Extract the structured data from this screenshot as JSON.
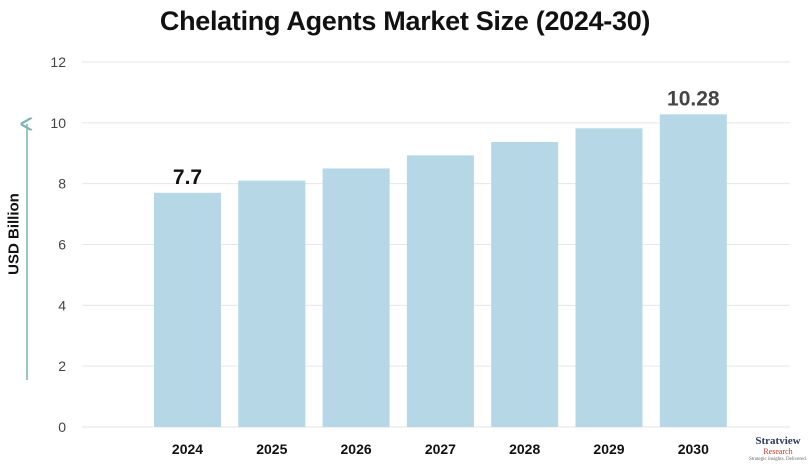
{
  "chart_data": {
    "type": "bar",
    "title": "Chelating Agents Market Size (2024-30)",
    "xlabel": "",
    "ylabel": "USD Billion",
    "ylim": [
      0,
      12
    ],
    "yticks": [
      0,
      2,
      4,
      6,
      8,
      10,
      12
    ],
    "grid": true,
    "categories": [
      "2024",
      "2025",
      "2026",
      "2027",
      "2028",
      "2029",
      "2030"
    ],
    "values": [
      7.7,
      8.1,
      8.5,
      8.93,
      9.37,
      9.82,
      10.28
    ],
    "annotations": [
      {
        "category": "2024",
        "text": "7.7",
        "color": "#111111"
      },
      {
        "category": "2030",
        "text": "10.28",
        "color": "#444444"
      }
    ],
    "colors": {
      "bar": "#b5d7e6",
      "grid": "#e6e6e6",
      "axis_arrow": "#7fb8b3"
    }
  },
  "logo": {
    "name": "Stratview",
    "sub": "Research",
    "tagline": "Strategic insights. Delivered."
  }
}
